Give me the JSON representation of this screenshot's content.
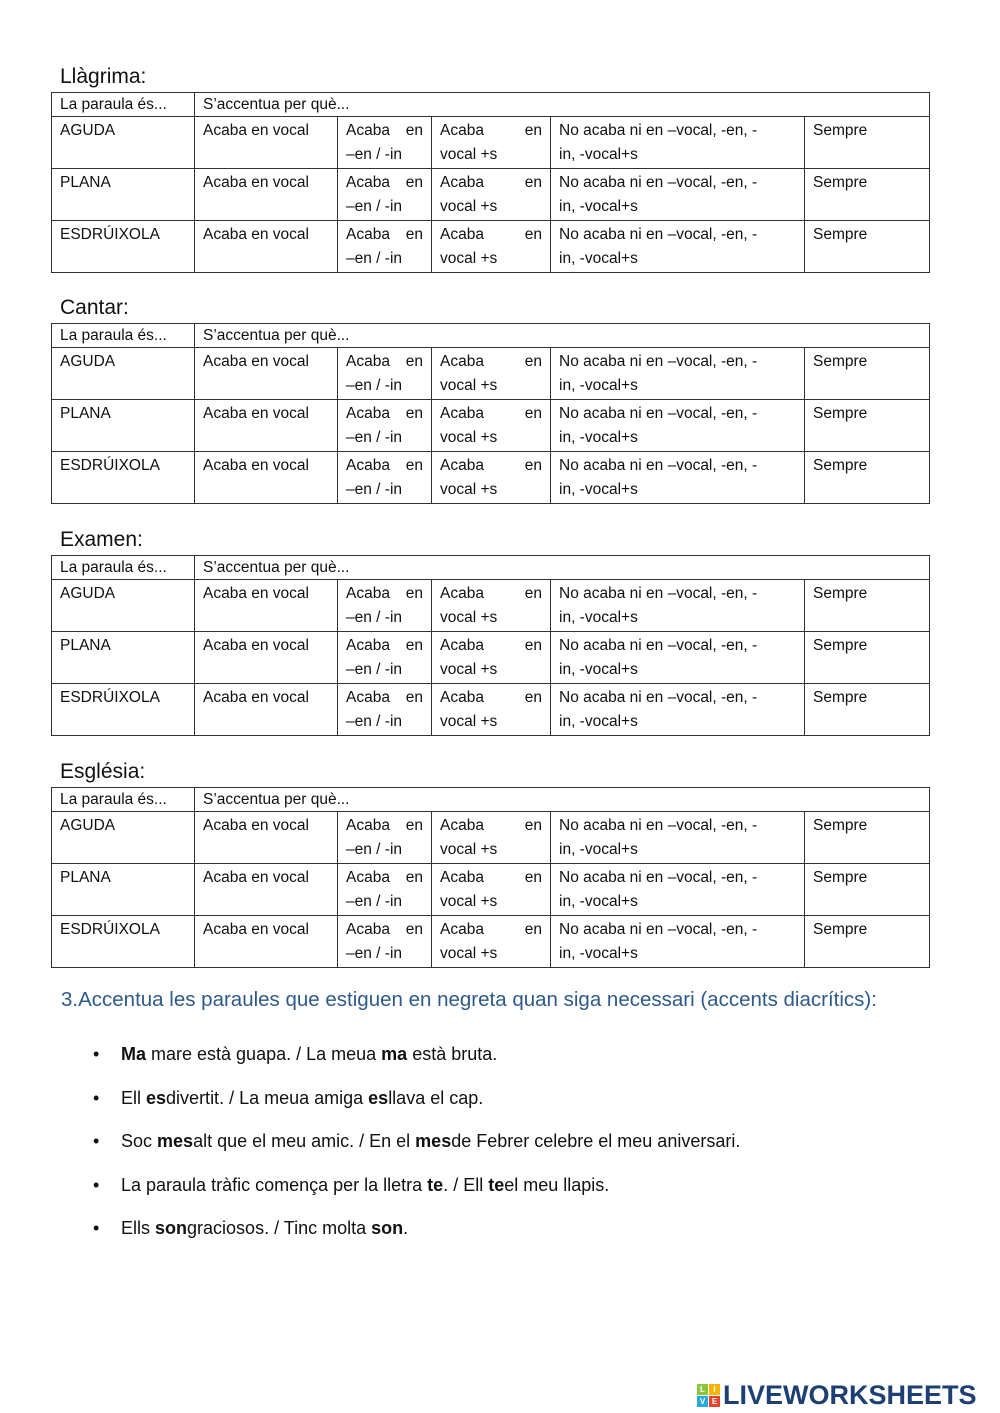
{
  "tables": [
    {
      "title": "Llàgrima:"
    },
    {
      "title": "Cantar:"
    },
    {
      "title": "Examen:"
    },
    {
      "title": "Església:"
    }
  ],
  "table_header": [
    "La paraula és...",
    "S’accentua per què..."
  ],
  "rows": [
    {
      "type": "AGUDA"
    },
    {
      "type": "PLANA"
    },
    {
      "type": "ESDRÚIXOLA"
    }
  ],
  "options": [
    {
      "lines": [
        "Acaba en vocal"
      ]
    },
    {
      "lines": [
        "Acaba en",
        "–en / -in"
      ]
    },
    {
      "lines": [
        "Acaba en",
        "vocal +s"
      ]
    },
    {
      "lines": [
        "No acaba ni en –vocal, -en, -",
        "in, -vocal+s"
      ]
    },
    {
      "lines": [
        "Sempre"
      ]
    }
  ],
  "exercise": {
    "instruction": "3.Accentua les paraules que estiguen en negreta quan siga necessari (accents diacrítics):",
    "color": "#2e5a8a",
    "items": [
      [
        {
          "t": "Ma",
          "b": true
        },
        {
          "t": " mare està guapa. / La meua "
        },
        {
          "t": "ma",
          "b": true
        },
        {
          "t": " està bruta."
        }
      ],
      [
        {
          "t": "Ell "
        },
        {
          "t": "es",
          "b": true
        },
        {
          "t": "divertit. / La meua amiga "
        },
        {
          "t": "es",
          "b": true
        },
        {
          "t": "llava el cap."
        }
      ],
      [
        {
          "t": "Soc "
        },
        {
          "t": "mes",
          "b": true
        },
        {
          "t": "alt que el meu amic. / En el "
        },
        {
          "t": "mes",
          "b": true
        },
        {
          "t": "de Febrer celebre el meu aniversari."
        }
      ],
      [
        {
          "t": "La paraula tràfic comença per la lletra "
        },
        {
          "t": "te",
          "b": true
        },
        {
          "t": ". / Ell "
        },
        {
          "t": "te",
          "b": true
        },
        {
          "t": "el meu llapis."
        }
      ],
      [
        {
          "t": "Ells "
        },
        {
          "t": "son",
          "b": true
        },
        {
          "t": "graciosos. / Tinc molta "
        },
        {
          "t": "son",
          "b": true
        },
        {
          "t": "."
        }
      ]
    ],
    "bullet": "•"
  },
  "logo": {
    "text": "LIVEWORKSHEETS",
    "letters": [
      "L",
      "I",
      "V",
      "E"
    ],
    "colors": [
      "#8cc63f",
      "#f7b500",
      "#29a8e0",
      "#e8412c"
    ]
  }
}
